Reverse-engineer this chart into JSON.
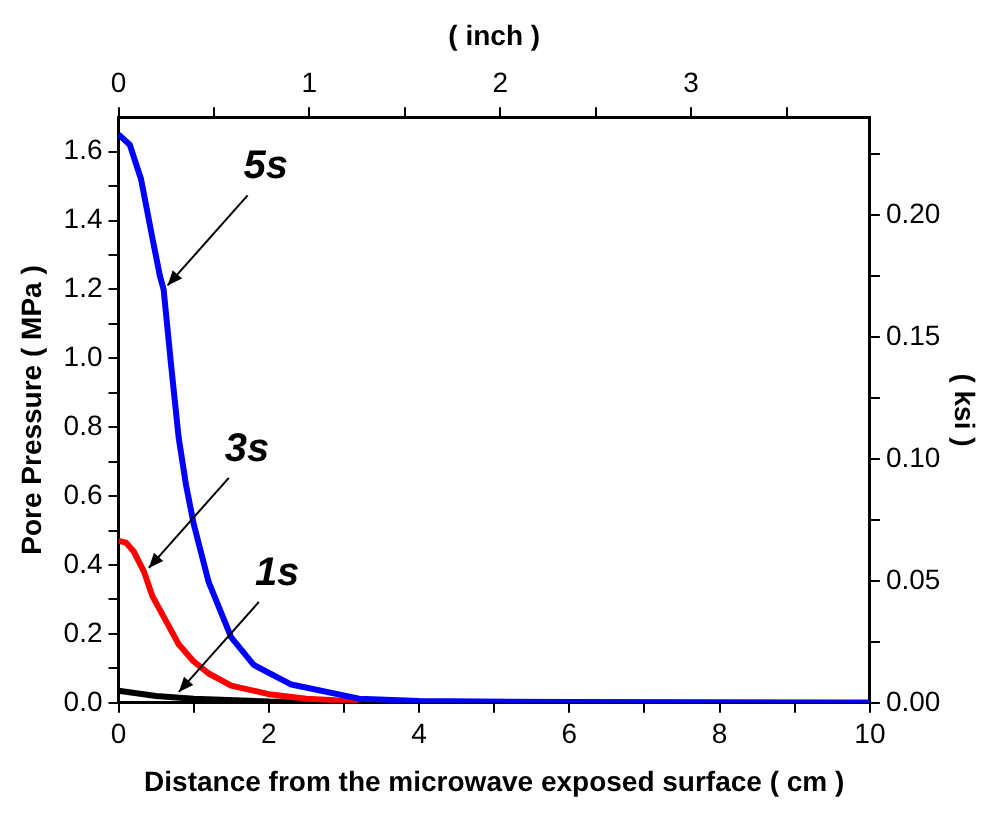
{
  "chart_data": {
    "type": "line",
    "xlabel": "Distance from the microwave exposed surface ( cm )",
    "ylabel": "Pore Pressure ( MPa )",
    "y2label": "( ksi )",
    "x2label": "( inch )",
    "xlim": [
      0,
      10
    ],
    "xticks": [
      0,
      {
        "value": 1,
        "label": null
      },
      2,
      {
        "value": 3,
        "label": null
      },
      4,
      {
        "value": 5,
        "label": null
      },
      6,
      {
        "value": 7,
        "label": null
      },
      8,
      {
        "value": 9,
        "label": null
      },
      10
    ],
    "x2lim": [
      0,
      3.937
    ],
    "x2ticks": [
      0,
      {
        "value": 0.5,
        "label": null
      },
      1,
      {
        "value": 1.5,
        "label": null
      },
      2,
      {
        "value": 2.5,
        "label": null
      },
      3,
      {
        "value": 3.5,
        "label": null
      }
    ],
    "ylim": [
      0,
      1.7
    ],
    "yticks": [
      {
        "value": 0,
        "label": "0.0"
      },
      {
        "value": 0.1,
        "label": null
      },
      {
        "value": 0.2,
        "label": "0.2"
      },
      {
        "value": 0.3,
        "label": null
      },
      {
        "value": 0.4,
        "label": "0.4"
      },
      {
        "value": 0.5,
        "label": null
      },
      {
        "value": 0.6,
        "label": "0.6"
      },
      {
        "value": 0.7,
        "label": null
      },
      {
        "value": 0.8,
        "label": "0.8"
      },
      {
        "value": 0.9,
        "label": null
      },
      {
        "value": 1,
        "label": "1.0"
      },
      {
        "value": 1.1,
        "label": null
      },
      {
        "value": 1.2,
        "label": "1.2"
      },
      {
        "value": 1.3,
        "label": null
      },
      {
        "value": 1.4,
        "label": "1.4"
      },
      {
        "value": 1.5,
        "label": null
      },
      {
        "value": 1.6,
        "label": "1.6"
      }
    ],
    "y2lim": [
      0,
      0.24
    ],
    "y2ticks": [
      {
        "value": 0,
        "label": "0.00"
      },
      {
        "value": 0.025,
        "label": null
      },
      {
        "value": 0.05,
        "label": "0.05"
      },
      {
        "value": 0.075,
        "label": null
      },
      {
        "value": 0.1,
        "label": "0.10"
      },
      {
        "value": 0.125,
        "label": null
      },
      {
        "value": 0.15,
        "label": "0.15"
      },
      {
        "value": 0.175,
        "label": null
      },
      {
        "value": 0.2,
        "label": "0.20"
      },
      {
        "value": 0.225,
        "label": null
      }
    ],
    "series": [
      {
        "color": "#0000ff",
        "x": [
          0,
          0.15,
          0.3,
          0.45,
          0.55,
          0.6,
          0.7,
          0.8,
          0.9,
          1,
          1.2,
          1.5,
          1.8,
          2.3,
          3.2,
          4,
          6,
          10
        ],
        "values": [
          1.65,
          1.62,
          1.52,
          1.35,
          1.24,
          1.2,
          0.98,
          0.77,
          0.63,
          0.52,
          0.35,
          0.19,
          0.11,
          0.053,
          0.012,
          0.005,
          0.002,
          0
        ]
      },
      {
        "color": "#ff0000",
        "x": [
          0,
          0.1,
          0.2,
          0.34,
          0.45,
          0.6,
          0.8,
          1,
          1.2,
          1.5,
          2,
          2.5,
          3.2
        ],
        "values": [
          0.47,
          0.465,
          0.44,
          0.38,
          0.31,
          0.25,
          0.17,
          0.12,
          0.085,
          0.05,
          0.025,
          0.012,
          0.004
        ]
      },
      {
        "color": "#000000",
        "x": [
          0,
          0.5,
          1,
          2,
          3,
          10
        ],
        "values": [
          0.035,
          0.02,
          0.012,
          0.004,
          0.001,
          0
        ]
      }
    ],
    "annotations": [
      {
        "text": "5s",
        "x": 0.6,
        "y": 1.2
      },
      {
        "text": "3s",
        "x": 0.35,
        "y": 0.38
      },
      {
        "text": "1s",
        "x": 0.75,
        "y": 0.02
      }
    ],
    "grid": false,
    "legend": false,
    "marker": "none",
    "line_style": "solid"
  }
}
